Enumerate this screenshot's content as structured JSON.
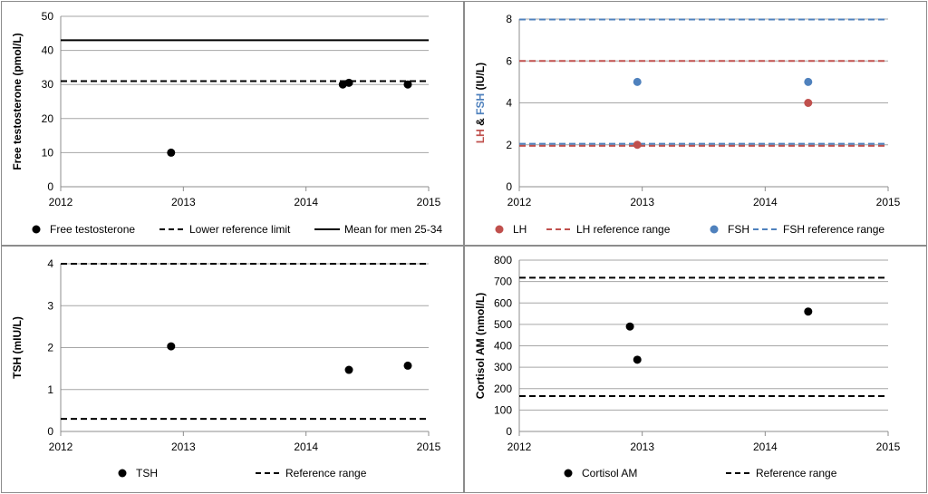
{
  "charts": [
    {
      "type": "scatter",
      "ylabel": "Free testosterone (pmol/L)",
      "xlim": [
        2012,
        2015
      ],
      "ylim": [
        0,
        50
      ],
      "x_ticks": [
        "2012",
        "2013",
        "2014",
        "2015"
      ],
      "y_ticks": [
        "0",
        "10",
        "20",
        "30",
        "40",
        "50"
      ],
      "grid": true,
      "legend": "bottom",
      "points": [
        {
          "series": "Free testosterone",
          "color": "#000000",
          "data": [
            [
              2012.9,
              10
            ],
            [
              2014.3,
              30
            ],
            [
              2014.35,
              30.5
            ],
            [
              2014.83,
              30
            ]
          ]
        }
      ],
      "lines": [
        {
          "series": "Lower reference limit",
          "color": "#000000",
          "dashed": true,
          "y": 31
        },
        {
          "series": "Mean for men 25-34",
          "color": "#000000",
          "dashed": false,
          "y": 43
        }
      ],
      "legend_items": [
        {
          "label": "Free testosterone",
          "kind": "marker",
          "color": "#000000"
        },
        {
          "label": "Lower reference limit",
          "kind": "dash",
          "color": "#000000"
        },
        {
          "label": "Mean for men 25-34",
          "kind": "solid",
          "color": "#000000"
        }
      ]
    },
    {
      "type": "scatter",
      "ylabel_parts": [
        {
          "text": "LH",
          "color": "#c0504d"
        },
        {
          "text": " & ",
          "color": "#000000"
        },
        {
          "text": "FSH",
          "color": "#4f81bd"
        },
        {
          "text": " (IU/L)",
          "color": "#000000"
        }
      ],
      "xlim": [
        2012,
        2015
      ],
      "ylim": [
        0,
        8
      ],
      "x_ticks": [
        "2012",
        "2013",
        "2014",
        "2015"
      ],
      "y_ticks": [
        "0",
        "2",
        "4",
        "6",
        "8"
      ],
      "grid": true,
      "legend": "bottom",
      "points": [
        {
          "series": "LH",
          "color": "#c0504d",
          "data": [
            [
              2012.96,
              2
            ],
            [
              2014.35,
              4
            ]
          ]
        },
        {
          "series": "FSH",
          "color": "#4f81bd",
          "data": [
            [
              2012.96,
              5
            ],
            [
              2014.35,
              5
            ]
          ]
        }
      ],
      "lines": [
        {
          "series": "LH reference range",
          "color": "#c0504d",
          "dashed": true,
          "y": 1.95
        },
        {
          "series": "LH reference range",
          "color": "#c0504d",
          "dashed": true,
          "y": 6
        },
        {
          "series": "FSH reference range",
          "color": "#4f81bd",
          "dashed": true,
          "y": 2.05
        },
        {
          "series": "FSH reference range",
          "color": "#4f81bd",
          "dashed": true,
          "y": 7.98
        }
      ],
      "legend_items": [
        {
          "label": "LH",
          "kind": "marker",
          "color": "#c0504d"
        },
        {
          "label": "LH reference range",
          "kind": "dash",
          "color": "#c0504d"
        },
        {
          "label": "FSH",
          "kind": "marker",
          "color": "#4f81bd"
        },
        {
          "label": "FSH reference range",
          "kind": "dash",
          "color": "#4f81bd"
        }
      ]
    },
    {
      "type": "scatter",
      "ylabel": "TSH (mIU/L)",
      "xlim": [
        2012,
        2015
      ],
      "ylim": [
        0,
        4
      ],
      "x_ticks": [
        "2012",
        "2013",
        "2014",
        "2015"
      ],
      "y_ticks": [
        "0",
        "1",
        "2",
        "3",
        "4"
      ],
      "grid": true,
      "legend": "bottom",
      "points": [
        {
          "series": "TSH",
          "color": "#000000",
          "data": [
            [
              2012.9,
              2.03
            ],
            [
              2014.35,
              1.47
            ],
            [
              2014.83,
              1.57
            ]
          ]
        }
      ],
      "lines": [
        {
          "series": "Reference range",
          "color": "#000000",
          "dashed": true,
          "y": 0.3
        },
        {
          "series": "Reference range",
          "color": "#000000",
          "dashed": true,
          "y": 4.0
        }
      ],
      "legend_items": [
        {
          "label": "TSH",
          "kind": "marker",
          "color": "#000000"
        },
        {
          "label": "Reference range",
          "kind": "dash",
          "color": "#000000"
        }
      ]
    },
    {
      "type": "scatter",
      "ylabel": "Cortisol AM (nmol/L)",
      "xlim": [
        2012,
        2015
      ],
      "ylim": [
        0,
        800
      ],
      "x_ticks": [
        "2012",
        "2013",
        "2014",
        "2015"
      ],
      "y_ticks": [
        "0",
        "100",
        "200",
        "300",
        "400",
        "500",
        "600",
        "700",
        "800"
      ],
      "grid": true,
      "legend": "bottom",
      "points": [
        {
          "series": "Cortisol AM",
          "color": "#000000",
          "data": [
            [
              2012.9,
              490
            ],
            [
              2012.96,
              335
            ],
            [
              2014.35,
              560
            ]
          ]
        }
      ],
      "lines": [
        {
          "series": "Reference range",
          "color": "#000000",
          "dashed": true,
          "y": 165
        },
        {
          "series": "Reference range",
          "color": "#000000",
          "dashed": true,
          "y": 718
        }
      ],
      "legend_items": [
        {
          "label": "Cortisol AM",
          "kind": "marker",
          "color": "#000000"
        },
        {
          "label": "Reference range",
          "kind": "dash",
          "color": "#000000"
        }
      ]
    }
  ]
}
